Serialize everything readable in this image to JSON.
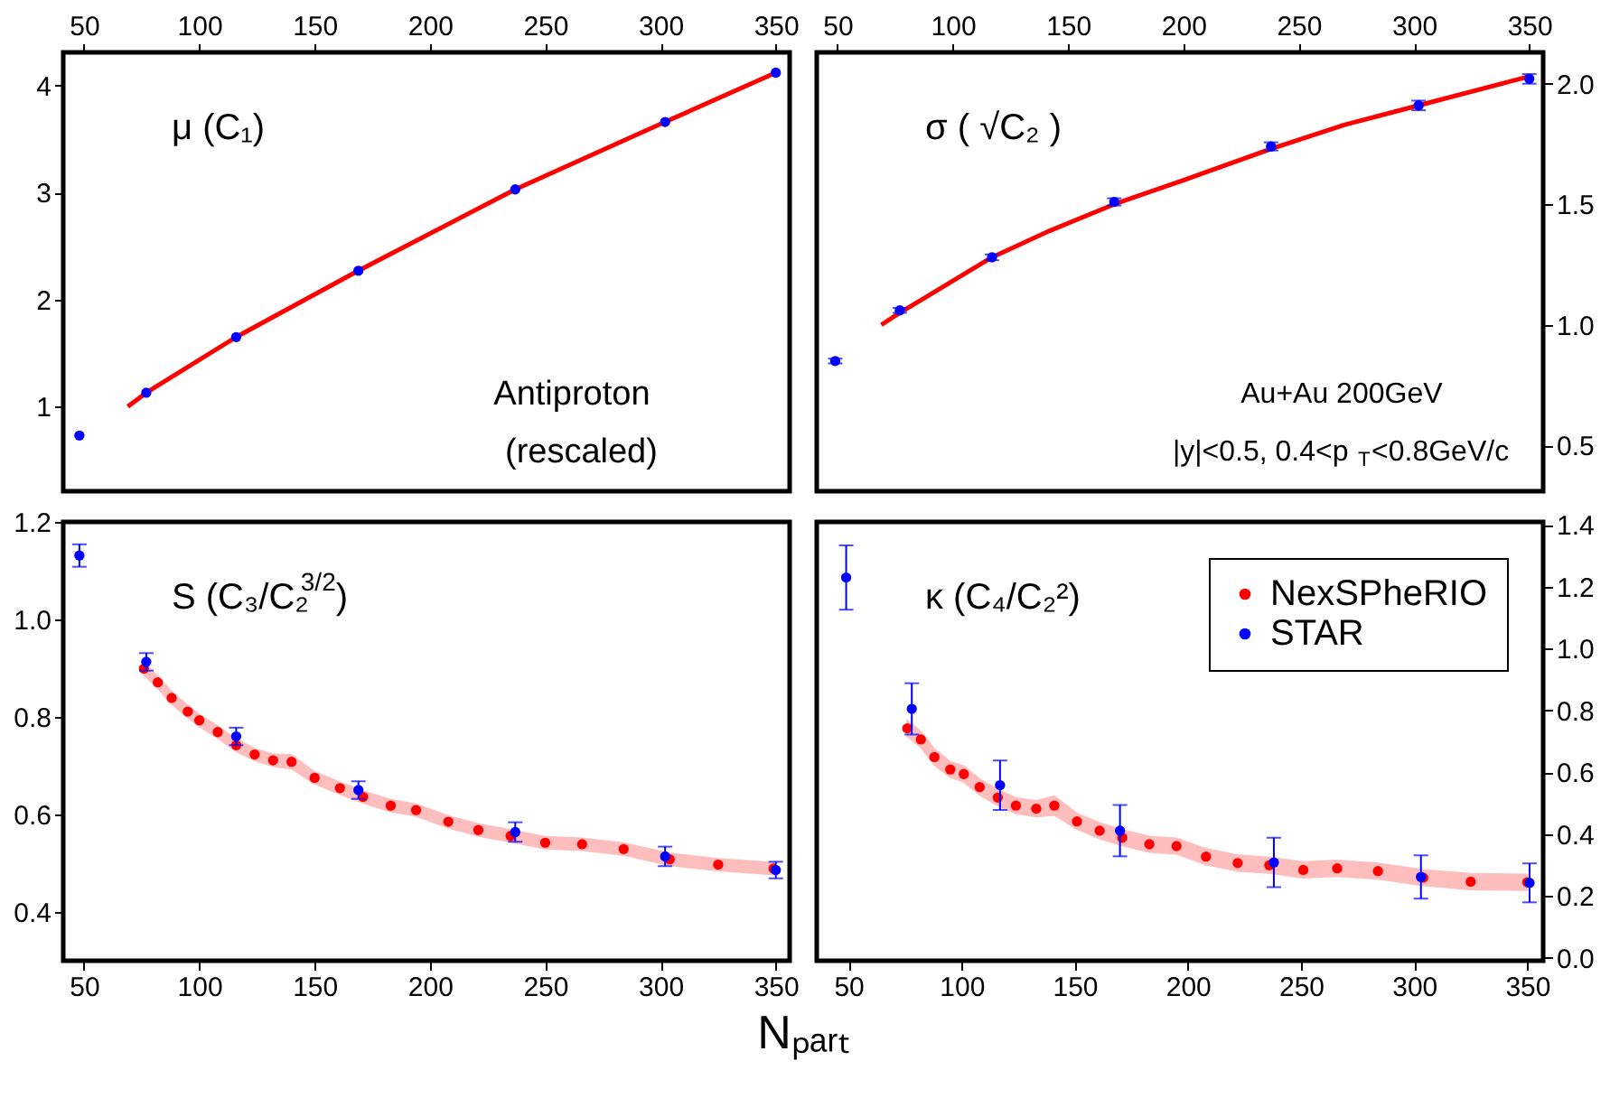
{
  "chart_data": [
    {
      "type": "scatter",
      "xlim": [
        41,
        356
      ],
      "ylim": [
        0.21,
        4.31
      ],
      "xticks": [
        50,
        100,
        150,
        200,
        250,
        300,
        350
      ],
      "yticks": [
        1,
        2,
        3,
        4
      ],
      "grid": false,
      "legend": false,
      "annotations": [
        "μ (C₁)",
        "Antiproton",
        "(rescaled)"
      ],
      "series": [
        {
          "type": "line",
          "color": "#ff0000",
          "marker": "none",
          "line_style": "solid",
          "x": [
            69,
            77,
            116,
            169,
            237,
            302,
            350
          ],
          "values": [
            1.0,
            1.13,
            1.65,
            2.27,
            3.03,
            3.66,
            4.12
          ]
        },
        {
          "color": "#0000ff",
          "marker": "circle",
          "x": [
            48,
            77,
            116,
            169,
            237,
            302,
            350
          ],
          "values": [
            0.73,
            1.13,
            1.65,
            2.27,
            3.03,
            3.66,
            4.12
          ]
        }
      ]
    },
    {
      "type": "scatter",
      "xlim": [
        41,
        356
      ],
      "ylim": [
        0.31,
        2.13
      ],
      "xticks": [
        50,
        100,
        150,
        200,
        250,
        300,
        350
      ],
      "yticks": [
        {
          "value": 0.5,
          "label": "0.5"
        },
        {
          "value": 1,
          "label": "1.0"
        },
        {
          "value": 1.5,
          "label": "1.5"
        },
        {
          "value": 2,
          "label": "2.0"
        }
      ],
      "grid": false,
      "legend": false,
      "annotations": [
        "σ ( √C₂ )",
        "Au+Au 200GeV",
        "|y|<0.5,  0.4<p$_{T}$<0.8GeV/c"
      ],
      "series": [
        {
          "type": "line",
          "color": "#ff0000",
          "marker": "none",
          "line_style": "solid",
          "x": [
            69,
            77,
            117,
            142,
            170,
            200,
            238,
            270,
            302,
            350
          ],
          "values": [
            1.0,
            1.05,
            1.28,
            1.39,
            1.5,
            1.6,
            1.73,
            1.83,
            1.91,
            2.03
          ]
        },
        {
          "color": "#0000ff",
          "marker": "circle",
          "x": [
            49,
            77,
            117,
            170,
            238,
            302,
            350
          ],
          "values": [
            0.85,
            1.06,
            1.28,
            1.51,
            1.74,
            1.91,
            2.02
          ],
          "errors": [
            0.01,
            0.01,
            0.012,
            0.015,
            0.017,
            0.02,
            0.02
          ]
        }
      ]
    },
    {
      "type": "scatter",
      "xlim": [
        41,
        356
      ],
      "ylim": [
        0.3,
        1.2
      ],
      "xticks": [
        50,
        100,
        150,
        200,
        250,
        300,
        350
      ],
      "yticks": [
        {
          "value": 0.4,
          "label": "0.4"
        },
        {
          "value": 0.6,
          "label": "0.6"
        },
        {
          "value": 0.8,
          "label": "0.8"
        },
        {
          "value": 1,
          "label": "1.0"
        },
        {
          "value": 1.2,
          "label": "1.2"
        }
      ],
      "grid": false,
      "legend": false,
      "xlabel": "Nₚₐᵣₜ",
      "annotations": [
        "S (C₃/C₂$^{3/2}$)"
      ],
      "series": [
        {
          "color": "#ff0000",
          "marker": "circle",
          "x": [
            76,
            82,
            88,
            95,
            100,
            108,
            116,
            124,
            132,
            140,
            150,
            161,
            171,
            183,
            194,
            208,
            221,
            235,
            250,
            266,
            284,
            304,
            325,
            349
          ],
          "values": [
            0.899,
            0.871,
            0.839,
            0.811,
            0.793,
            0.769,
            0.742,
            0.723,
            0.711,
            0.708,
            0.675,
            0.654,
            0.636,
            0.618,
            0.609,
            0.585,
            0.568,
            0.556,
            0.542,
            0.539,
            0.529,
            0.508,
            0.497,
            0.489
          ],
          "lower": [
            0.887,
            0.859,
            0.827,
            0.799,
            0.781,
            0.757,
            0.73,
            0.711,
            0.699,
            0.694,
            0.663,
            0.642,
            0.624,
            0.606,
            0.597,
            0.573,
            0.556,
            0.544,
            0.53,
            0.527,
            0.517,
            0.496,
            0.485,
            0.477
          ],
          "upper": [
            0.911,
            0.883,
            0.851,
            0.823,
            0.805,
            0.781,
            0.754,
            0.735,
            0.723,
            0.722,
            0.687,
            0.666,
            0.648,
            0.63,
            0.621,
            0.597,
            0.58,
            0.568,
            0.554,
            0.551,
            0.541,
            0.52,
            0.509,
            0.501
          ]
        },
        {
          "color": "#0000ff",
          "marker": "circle",
          "x": [
            48,
            77,
            116,
            169,
            237,
            302,
            350
          ],
          "values": [
            1.131,
            0.913,
            0.76,
            0.65,
            0.564,
            0.514,
            0.486
          ],
          "errors": [
            0.023,
            0.018,
            0.018,
            0.018,
            0.02,
            0.02,
            0.017
          ]
        }
      ]
    },
    {
      "type": "scatter",
      "xlim": [
        36,
        357
      ],
      "ylim": [
        -0.01,
        1.41
      ],
      "xticks": [
        50,
        100,
        150,
        200,
        250,
        300,
        350
      ],
      "yticks": [
        {
          "value": 0,
          "label": "0.0"
        },
        {
          "value": 0.2,
          "label": "0.2"
        },
        {
          "value": 0.4,
          "label": "0.4"
        },
        {
          "value": 0.6,
          "label": "0.6"
        },
        {
          "value": 0.8,
          "label": "0.8"
        },
        {
          "value": 1,
          "label": "1.0"
        },
        {
          "value": 1.2,
          "label": "1.2"
        },
        {
          "value": 1.4,
          "label": "1.4"
        }
      ],
      "grid": false,
      "legend": "top right",
      "annotations": [
        "κ (C₄/C₂²)"
      ],
      "series": [
        {
          "name": "NexSPheRIO",
          "color": "#ff0000",
          "marker": "circle",
          "x": [
            76,
            82,
            88,
            95,
            101,
            108,
            116,
            124,
            133,
            141,
            151,
            161,
            171,
            183,
            195,
            208,
            222,
            236,
            251,
            266,
            284,
            304,
            325,
            350
          ],
          "values": [
            0.742,
            0.706,
            0.649,
            0.609,
            0.594,
            0.552,
            0.518,
            0.492,
            0.482,
            0.492,
            0.441,
            0.411,
            0.388,
            0.367,
            0.361,
            0.327,
            0.306,
            0.299,
            0.284,
            0.289,
            0.28,
            0.259,
            0.246,
            0.244
          ],
          "lower": [
            0.717,
            0.681,
            0.624,
            0.584,
            0.569,
            0.527,
            0.493,
            0.467,
            0.457,
            0.462,
            0.416,
            0.386,
            0.363,
            0.342,
            0.336,
            0.302,
            0.281,
            0.274,
            0.259,
            0.264,
            0.255,
            0.234,
            0.221,
            0.219
          ],
          "upper": [
            0.767,
            0.731,
            0.674,
            0.634,
            0.619,
            0.577,
            0.543,
            0.517,
            0.507,
            0.522,
            0.466,
            0.436,
            0.413,
            0.392,
            0.386,
            0.352,
            0.331,
            0.324,
            0.309,
            0.314,
            0.305,
            0.284,
            0.271,
            0.269
          ]
        },
        {
          "name": "STAR",
          "color": "#0000ff",
          "marker": "circle",
          "x": [
            49,
            78,
            117,
            170,
            238,
            303,
            351
          ],
          "values": [
            1.23,
            0.805,
            0.558,
            0.411,
            0.308,
            0.261,
            0.242
          ],
          "errors": [
            0.104,
            0.083,
            0.08,
            0.083,
            0.08,
            0.07,
            0.063
          ]
        }
      ]
    }
  ]
}
